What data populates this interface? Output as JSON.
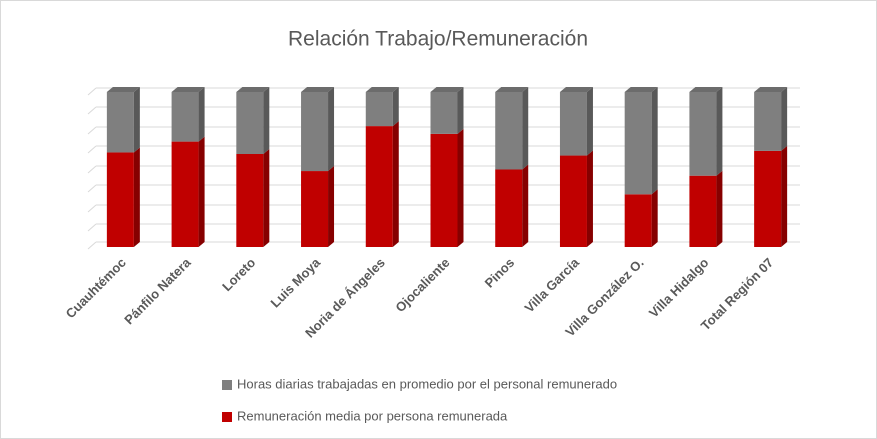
{
  "chart_data": {
    "type": "bar",
    "stacked": true,
    "title": "Relación Trabajo/Remuneración",
    "categories": [
      "Cuauhtémoc",
      "Pánfilo Natera",
      "Loreto",
      "Luis Moya",
      "Noria de Ángeles",
      "Ojocaliente",
      "Pinos",
      "Villa García",
      "Villa González O.",
      "Villa Hidalgo",
      "Total Región 07"
    ],
    "series": [
      {
        "name": "Remuneración media por persona remunerada",
        "color": "#c00000",
        "values": [
          61,
          68,
          60,
          49,
          78,
          73,
          50,
          59,
          34,
          46,
          62
        ]
      },
      {
        "name": "Horas diarias trabajadas en promedio por el personal remunerado",
        "color": "#7f7f7f",
        "values": [
          39,
          32,
          40,
          51,
          22,
          27,
          50,
          41,
          66,
          54,
          38
        ]
      }
    ],
    "ylim": [
      0,
      100
    ],
    "legend": "bottom"
  }
}
